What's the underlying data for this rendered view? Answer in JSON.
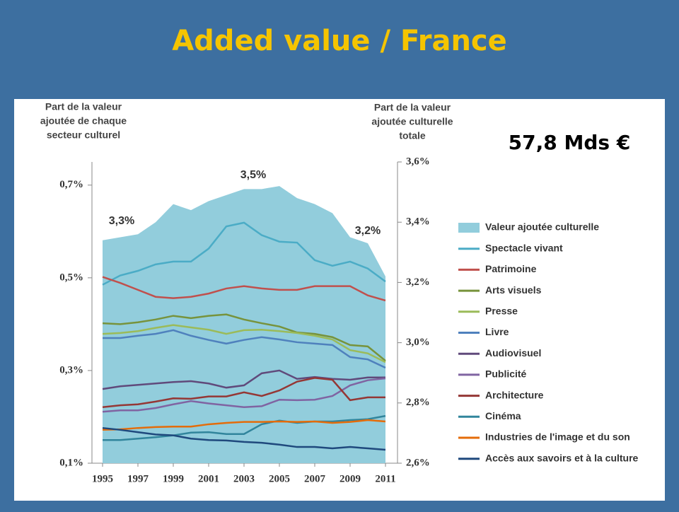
{
  "title": "Added value / France",
  "chart_data": {
    "type": "line",
    "left_axis_label": [
      "Part de la valeur",
      "ajoutée de chaque",
      "secteur culturel"
    ],
    "right_axis_label": [
      "Part de la valeur",
      "ajoutée culturelle",
      "totale"
    ],
    "annotations": [
      "3,3%",
      "3,5%",
      "3,2%"
    ],
    "total_label": "57,8 Mds €",
    "x": [
      1995,
      1996,
      1997,
      1998,
      1999,
      2000,
      2001,
      2002,
      2003,
      2004,
      2005,
      2006,
      2007,
      2008,
      2009,
      2010,
      2011
    ],
    "xticks": [
      1995,
      1997,
      1999,
      2001,
      2003,
      2005,
      2007,
      2009,
      2011
    ],
    "ylim": [
      0.1,
      0.75
    ],
    "yticks": [
      {
        "value": 0.1,
        "label": "0,1%"
      },
      {
        "value": 0.3,
        "label": "0,3%"
      },
      {
        "value": 0.5,
        "label": "0,5%"
      },
      {
        "value": 0.7,
        "label": "0,7%"
      }
    ],
    "y2lim": [
      2.6,
      3.6
    ],
    "y2ticks": [
      {
        "value": 2.6,
        "label": "2,6%"
      },
      {
        "value": 2.8,
        "label": "2,8%"
      },
      {
        "value": 3.0,
        "label": "3,0%"
      },
      {
        "value": 3.2,
        "label": "3,2%"
      },
      {
        "value": 3.4,
        "label": "3,4%"
      },
      {
        "value": 3.6,
        "label": "3,6%"
      }
    ],
    "series": [
      {
        "name": "Valeur ajoutée culturelle",
        "color": "#92cddc",
        "axis": "y2",
        "kind": "area",
        "values": [
          3.34,
          3.35,
          3.36,
          3.4,
          3.46,
          3.44,
          3.47,
          3.49,
          3.51,
          3.51,
          3.52,
          3.48,
          3.46,
          3.43,
          3.35,
          3.33,
          3.22
        ]
      },
      {
        "name": "Spectacle vivant",
        "color": "#4bacc6",
        "values": [
          0.485,
          0.505,
          0.515,
          0.529,
          0.535,
          0.535,
          0.563,
          0.611,
          0.619,
          0.592,
          0.578,
          0.576,
          0.538,
          0.526,
          0.535,
          0.52,
          0.492
        ]
      },
      {
        "name": "Patrimoine",
        "color": "#c0504d",
        "values": [
          0.502,
          0.489,
          0.474,
          0.459,
          0.456,
          0.459,
          0.466,
          0.477,
          0.482,
          0.477,
          0.474,
          0.474,
          0.482,
          0.482,
          0.482,
          0.462,
          0.451
        ]
      },
      {
        "name": "Arts visuels",
        "color": "#77933c",
        "values": [
          0.402,
          0.4,
          0.404,
          0.41,
          0.418,
          0.413,
          0.418,
          0.421,
          0.41,
          0.402,
          0.395,
          0.382,
          0.379,
          0.372,
          0.355,
          0.352,
          0.321
        ]
      },
      {
        "name": "Presse",
        "color": "#9bbb59",
        "values": [
          0.379,
          0.381,
          0.385,
          0.392,
          0.398,
          0.393,
          0.388,
          0.379,
          0.387,
          0.388,
          0.385,
          0.381,
          0.375,
          0.367,
          0.344,
          0.337,
          0.318
        ]
      },
      {
        "name": "Livre",
        "color": "#4f81bd",
        "values": [
          0.37,
          0.37,
          0.375,
          0.379,
          0.387,
          0.375,
          0.366,
          0.358,
          0.366,
          0.372,
          0.367,
          0.361,
          0.358,
          0.355,
          0.329,
          0.324,
          0.306
        ]
      },
      {
        "name": "Audiovisuel",
        "color": "#604a7b",
        "values": [
          0.26,
          0.266,
          0.269,
          0.272,
          0.275,
          0.277,
          0.272,
          0.263,
          0.268,
          0.294,
          0.3,
          0.282,
          0.286,
          0.282,
          0.28,
          0.285,
          0.285
        ]
      },
      {
        "name": "Publicité",
        "color": "#8064a2",
        "values": [
          0.211,
          0.214,
          0.214,
          0.219,
          0.227,
          0.234,
          0.229,
          0.225,
          0.221,
          0.223,
          0.237,
          0.236,
          0.237,
          0.245,
          0.268,
          0.279,
          0.283
        ]
      },
      {
        "name": "Architecture",
        "color": "#953735",
        "values": [
          0.221,
          0.225,
          0.227,
          0.233,
          0.24,
          0.239,
          0.244,
          0.244,
          0.253,
          0.245,
          0.257,
          0.276,
          0.284,
          0.28,
          0.236,
          0.242,
          0.242
        ]
      },
      {
        "name": "Cinéma",
        "color": "#31859c",
        "values": [
          0.15,
          0.15,
          0.153,
          0.156,
          0.16,
          0.166,
          0.167,
          0.163,
          0.163,
          0.184,
          0.192,
          0.187,
          0.19,
          0.19,
          0.193,
          0.195,
          0.202
        ]
      },
      {
        "name": "Industries de l'image et du son",
        "color": "#e46c0a",
        "values": [
          0.172,
          0.173,
          0.176,
          0.178,
          0.179,
          0.179,
          0.184,
          0.187,
          0.189,
          0.189,
          0.19,
          0.189,
          0.19,
          0.187,
          0.189,
          0.193,
          0.19
        ]
      },
      {
        "name": "Accès aux savoirs et à la culture",
        "color": "#1f497d",
        "values": [
          0.176,
          0.172,
          0.167,
          0.162,
          0.16,
          0.153,
          0.15,
          0.149,
          0.146,
          0.144,
          0.14,
          0.135,
          0.135,
          0.132,
          0.135,
          0.132,
          0.129
        ]
      }
    ]
  }
}
